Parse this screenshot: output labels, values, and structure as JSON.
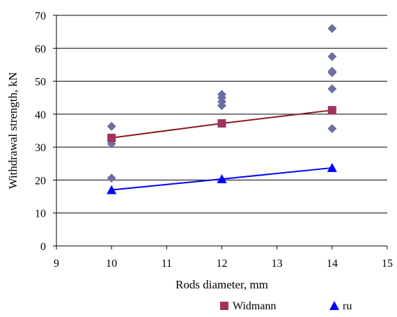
{
  "chart_data": {
    "type": "scatter",
    "title": "",
    "xlabel": "Rods diameter, mm",
    "ylabel": "Withdrawal strength, kN",
    "xlim": [
      9,
      15
    ],
    "ylim": [
      0,
      70
    ],
    "xticks": [
      "9",
      "10",
      "11",
      "12",
      "13",
      "14",
      "15"
    ],
    "yticks": [
      "0",
      "10",
      "20",
      "30",
      "40",
      "50",
      "60",
      "70"
    ],
    "grid": "horizontal",
    "legend_position": "bottom-right",
    "series": [
      {
        "name": "",
        "marker": "diamond",
        "color": "#6b6fa3",
        "line": false,
        "points": [
          [
            10,
            36.3
          ],
          [
            10,
            32.8
          ],
          [
            10,
            32.0
          ],
          [
            10,
            31.0
          ],
          [
            10,
            20.6
          ],
          [
            12,
            46.0
          ],
          [
            12,
            45.0
          ],
          [
            12,
            43.8
          ],
          [
            12,
            42.6
          ],
          [
            14,
            66.0
          ],
          [
            14,
            57.5
          ],
          [
            14,
            53.0
          ],
          [
            14,
            52.6
          ],
          [
            14,
            47.7
          ],
          [
            14,
            35.6
          ]
        ]
      },
      {
        "name": "Widmann",
        "marker": "square",
        "color": "#a0335f",
        "line": true,
        "line_color": "#8b1a1a",
        "points": [
          [
            10,
            32.8
          ],
          [
            12,
            37.2
          ],
          [
            14,
            41.2
          ]
        ]
      },
      {
        "name": "ru",
        "marker": "triangle",
        "color": "#0000ff",
        "line": true,
        "line_color": "#0000ff",
        "points": [
          [
            10,
            17.0
          ],
          [
            12,
            20.3
          ],
          [
            14,
            23.7
          ]
        ]
      }
    ]
  }
}
